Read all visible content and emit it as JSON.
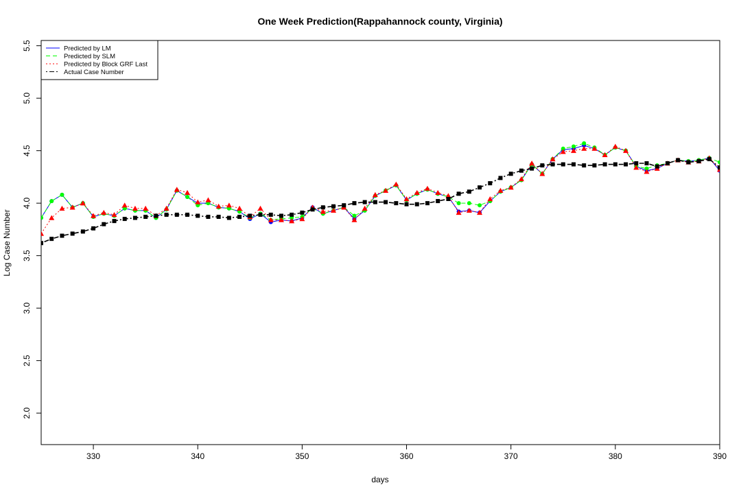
{
  "chart_data": {
    "type": "line",
    "title": "One Week Prediction(Rappahannock county, Virginia)",
    "xlabel": "days",
    "ylabel": "Log Case Number",
    "xlim": [
      325,
      390
    ],
    "ylim": [
      1.7,
      5.55
    ],
    "xticks": [
      330,
      340,
      350,
      360,
      370,
      380,
      390
    ],
    "yticks": [
      2.0,
      2.5,
      3.0,
      3.5,
      4.0,
      4.5,
      5.0,
      5.5
    ],
    "xtick_labels": [
      "330",
      "340",
      "350",
      "360",
      "370",
      "380",
      "390"
    ],
    "ytick_labels": [
      "2.0",
      "2.5",
      "3.0",
      "3.5",
      "4.0",
      "4.5",
      "5.0",
      "5.5"
    ],
    "grid": false,
    "legend_position": "top-left",
    "x": [
      325,
      326,
      327,
      328,
      329,
      330,
      331,
      332,
      333,
      334,
      335,
      336,
      337,
      338,
      339,
      340,
      341,
      342,
      343,
      344,
      345,
      346,
      347,
      348,
      349,
      350,
      351,
      352,
      353,
      354,
      355,
      356,
      357,
      358,
      359,
      360,
      361,
      362,
      363,
      364,
      365,
      366,
      367,
      368,
      369,
      370,
      371,
      372,
      373,
      374,
      375,
      376,
      377,
      378,
      379,
      380,
      381,
      382,
      383,
      384,
      385,
      386,
      387,
      388,
      389,
      390
    ],
    "series": [
      {
        "name": "Predicted by LM",
        "color": "#0000ff",
        "line_style": "solid",
        "marker": "circle",
        "values": [
          3.86,
          4.02,
          4.08,
          3.96,
          4.0,
          3.87,
          3.9,
          3.88,
          3.95,
          3.93,
          3.93,
          3.86,
          3.94,
          4.12,
          4.06,
          4.0,
          4.0,
          3.96,
          3.95,
          3.92,
          3.85,
          3.9,
          3.82,
          3.84,
          3.83,
          3.86,
          3.96,
          3.9,
          3.93,
          3.96,
          3.85,
          3.93,
          4.07,
          4.12,
          4.17,
          4.03,
          4.09,
          4.13,
          4.09,
          4.06,
          3.92,
          3.93,
          3.91,
          4.02,
          4.11,
          4.15,
          4.22,
          4.37,
          4.28,
          4.42,
          4.51,
          4.52,
          4.55,
          4.52,
          4.46,
          4.53,
          4.5,
          4.35,
          4.31,
          4.33,
          4.38,
          4.41,
          4.4,
          4.41,
          4.43,
          4.31
        ]
      },
      {
        "name": "Predicted by SLM",
        "color": "#00ff00",
        "line_style": "dashed",
        "marker": "circle",
        "values": [
          3.86,
          4.02,
          4.08,
          3.96,
          4.0,
          3.87,
          3.9,
          3.88,
          3.95,
          3.93,
          3.93,
          3.86,
          3.94,
          4.12,
          4.06,
          3.98,
          4.0,
          3.96,
          3.95,
          3.92,
          3.86,
          3.9,
          3.84,
          3.85,
          3.86,
          3.87,
          3.95,
          3.9,
          3.93,
          3.96,
          3.88,
          3.93,
          4.07,
          4.12,
          4.17,
          4.03,
          4.09,
          4.13,
          4.09,
          4.06,
          4.0,
          4.0,
          3.98,
          4.02,
          4.11,
          4.15,
          4.22,
          4.37,
          4.28,
          4.42,
          4.52,
          4.54,
          4.57,
          4.53,
          4.46,
          4.53,
          4.5,
          4.35,
          4.33,
          4.36,
          4.38,
          4.41,
          4.4,
          4.41,
          4.43,
          4.39
        ]
      },
      {
        "name": "Predicted by Block GRF Last",
        "color": "#ff0000",
        "line_style": "dotted",
        "marker": "triangle",
        "values": [
          3.71,
          3.86,
          3.95,
          3.96,
          4.0,
          3.88,
          3.91,
          3.89,
          3.98,
          3.95,
          3.95,
          3.88,
          3.95,
          4.13,
          4.1,
          4.01,
          4.03,
          3.97,
          3.98,
          3.95,
          3.87,
          3.95,
          3.84,
          3.84,
          3.83,
          3.85,
          3.96,
          3.92,
          3.93,
          3.96,
          3.84,
          3.95,
          4.08,
          4.12,
          4.18,
          4.04,
          4.1,
          4.14,
          4.1,
          4.07,
          3.91,
          3.93,
          3.91,
          4.04,
          4.12,
          4.15,
          4.23,
          4.38,
          4.28,
          4.42,
          4.49,
          4.5,
          4.52,
          4.52,
          4.46,
          4.54,
          4.5,
          4.34,
          4.3,
          4.33,
          4.38,
          4.41,
          4.39,
          4.4,
          4.43,
          4.32
        ]
      },
      {
        "name": "Actual Case Number",
        "color": "#000000",
        "line_style": "dotdash",
        "marker": "square",
        "values": [
          3.62,
          3.66,
          3.69,
          3.71,
          3.73,
          3.76,
          3.8,
          3.83,
          3.85,
          3.86,
          3.87,
          3.88,
          3.89,
          3.89,
          3.89,
          3.88,
          3.87,
          3.87,
          3.86,
          3.87,
          3.88,
          3.89,
          3.89,
          3.88,
          3.89,
          3.91,
          3.94,
          3.96,
          3.97,
          3.98,
          4.0,
          4.01,
          4.01,
          4.01,
          4.0,
          3.99,
          3.99,
          4.0,
          4.02,
          4.04,
          4.09,
          4.11,
          4.15,
          4.19,
          4.24,
          4.28,
          4.31,
          4.33,
          4.36,
          4.37,
          4.37,
          4.37,
          4.36,
          4.36,
          4.37,
          4.37,
          4.37,
          4.38,
          4.38,
          4.35,
          4.38,
          4.41,
          4.39,
          4.4,
          4.42,
          4.34
        ]
      }
    ]
  }
}
